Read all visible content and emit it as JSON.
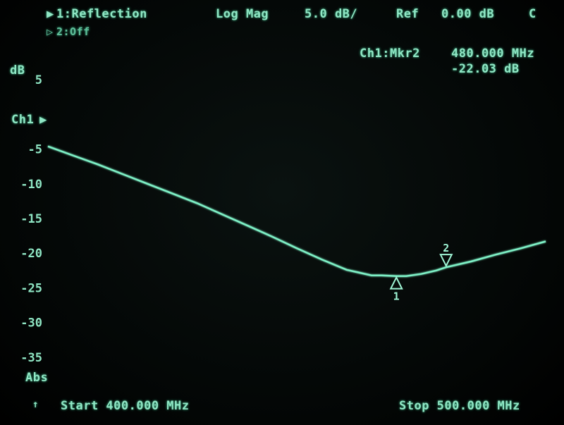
{
  "header": {
    "ch1_label": "1:Reflection",
    "ch2_label": "2:Off",
    "format": "Log Mag",
    "scale": "5.0 dB/",
    "ref_label": "Ref",
    "ref_value": "0.00 dB",
    "cal_flag": "C"
  },
  "marker_readout": {
    "label": "Ch1:Mkr2",
    "frequency": "480.000 MHz",
    "value": "-22.03 dB"
  },
  "axis": {
    "unit": "dB",
    "channel_ref": "Ch1",
    "mode": "Abs",
    "start": "Start 400.000 MHz",
    "stop": "Stop 500.000 MHz"
  },
  "chart_data": {
    "type": "line",
    "xlabel": "",
    "ylabel": "dB",
    "xlim": [
      400,
      500
    ],
    "ylim": [
      -40,
      10
    ],
    "grid": true,
    "y_ticks": [
      5,
      -5,
      -10,
      -15,
      -20,
      -25,
      -30,
      -35
    ],
    "y_tick_labels": [
      "5",
      "-5",
      "-10",
      "-15",
      "-20",
      "-25",
      "-30",
      "-35"
    ],
    "series": [
      {
        "x": [
          400,
          405,
          410,
          415,
          420,
          425,
          430,
          435,
          440,
          445,
          450,
          455,
          460,
          465,
          467,
          470,
          472,
          475,
          478,
          480,
          485,
          490,
          495,
          500
        ],
        "y": [
          -4.6,
          -5.9,
          -7.2,
          -8.6,
          -10.0,
          -11.4,
          -12.8,
          -14.4,
          -16.0,
          -17.6,
          -19.3,
          -20.9,
          -22.4,
          -23.2,
          -23.2,
          -23.3,
          -23.3,
          -23.0,
          -22.5,
          -22.03,
          -21.2,
          -20.2,
          -19.3,
          -18.3
        ]
      }
    ],
    "markers": [
      {
        "id": "1",
        "x": 470.0,
        "y": -23.3,
        "direction": "up"
      },
      {
        "id": "2",
        "x": 480.0,
        "y": -22.03,
        "direction": "down"
      }
    ]
  }
}
